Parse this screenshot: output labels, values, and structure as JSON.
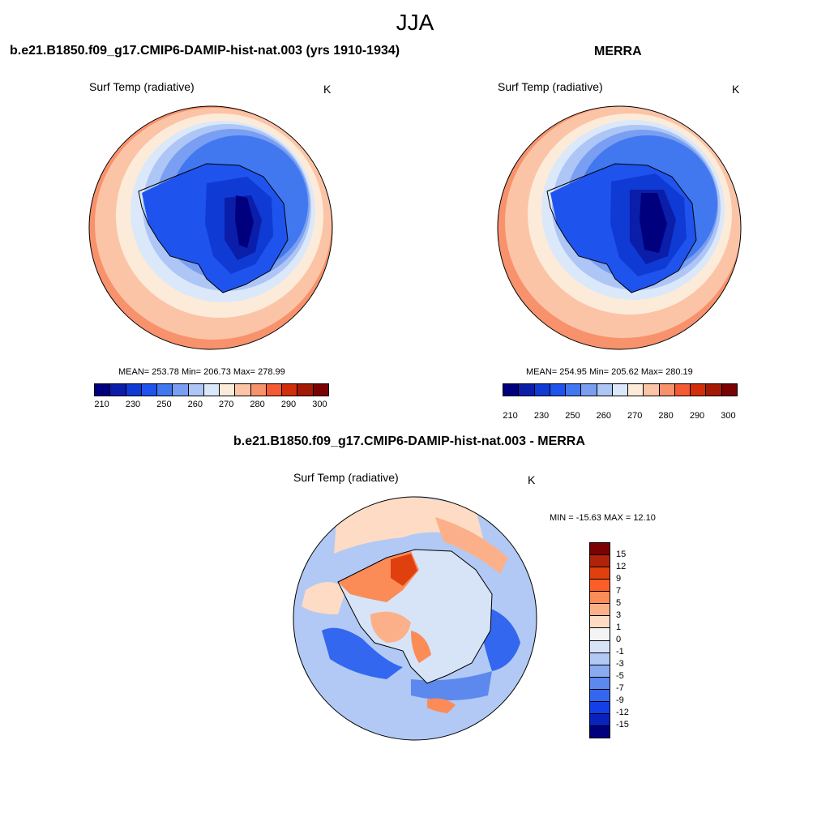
{
  "season": "JJA",
  "panels": {
    "model": {
      "title": "b.e21.B1850.f09_g17.CMIP6-DAMIP-hist-nat.003 (yrs 1910-1934)",
      "variable": "Surf Temp (radiative)",
      "units": "K",
      "stats": "MEAN= 253.78  Min= 206.73  Max= 278.99",
      "mean": 253.78,
      "min": 206.73,
      "max": 278.99
    },
    "obs": {
      "title": "MERRA",
      "variable": "Surf Temp (radiative)",
      "units": "K",
      "stats": "MEAN= 254.95  Min= 205.62  Max= 280.19",
      "mean": 254.95,
      "min": 205.62,
      "max": 280.19
    },
    "diff": {
      "title": "b.e21.B1850.f09_g17.CMIP6-DAMIP-hist-nat.003 - MERRA",
      "variable": "Surf Temp (radiative)",
      "units": "K",
      "stats": "MIN = -15.63 MAX =  12.10",
      "min": -15.63,
      "max": 12.1
    }
  },
  "abs_colorbar": {
    "colors": [
      "#00007f",
      "#0a1eaa",
      "#0f3ad4",
      "#1f53ed",
      "#4178f0",
      "#7a9ef2",
      "#adc6f5",
      "#dbe8fa",
      "#fdebd9",
      "#fbc4a6",
      "#f8926c",
      "#f45a34",
      "#d12e0c",
      "#a31a05",
      "#7a0202"
    ],
    "tick_labels": [
      "210",
      "230",
      "250",
      "260",
      "270",
      "280",
      "290",
      "300"
    ]
  },
  "diff_colorbar": {
    "colors": [
      "#7a0202",
      "#b0220a",
      "#e0400e",
      "#fb5e26",
      "#fb8b57",
      "#fcb08a",
      "#fddbc4",
      "#f4f4f4",
      "#d7e4f7",
      "#b1c9f4",
      "#8aabf0",
      "#5d88ee",
      "#3367f0",
      "#1240e6",
      "#0a22bd",
      "#00007f"
    ],
    "tick_labels": [
      "15",
      "12",
      "9",
      "7",
      "5",
      "3",
      "1",
      "0",
      "-1",
      "-3",
      "-5",
      "-7",
      "-9",
      "-12",
      "-15"
    ]
  }
}
